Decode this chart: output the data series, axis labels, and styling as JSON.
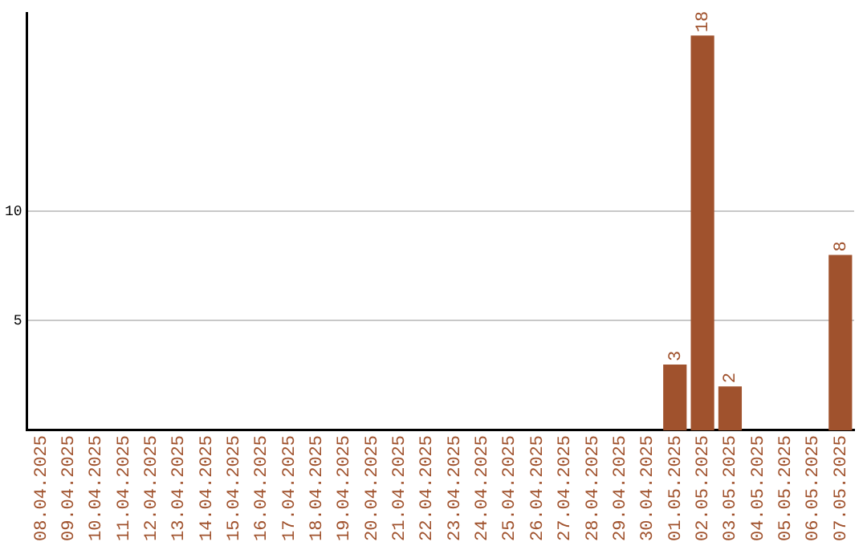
{
  "chart_data": {
    "type": "bar",
    "categories": [
      "08.04.2025",
      "09.04.2025",
      "10.04.2025",
      "11.04.2025",
      "12.04.2025",
      "13.04.2025",
      "14.04.2025",
      "15.04.2025",
      "16.04.2025",
      "17.04.2025",
      "18.04.2025",
      "19.04.2025",
      "20.04.2025",
      "21.04.2025",
      "22.04.2025",
      "23.04.2025",
      "24.04.2025",
      "25.04.2025",
      "26.04.2025",
      "27.04.2025",
      "28.04.2025",
      "29.04.2025",
      "30.04.2025",
      "01.05.2025",
      "02.05.2025",
      "03.05.2025",
      "04.05.2025",
      "05.05.2025",
      "06.05.2025",
      "07.05.2025"
    ],
    "values": [
      0,
      0,
      0,
      0,
      0,
      0,
      0,
      0,
      0,
      0,
      0,
      0,
      0,
      0,
      0,
      0,
      0,
      0,
      0,
      0,
      0,
      0,
      0,
      3,
      18,
      2,
      0,
      0,
      0,
      8
    ],
    "value_labels": [
      null,
      null,
      null,
      null,
      null,
      null,
      null,
      null,
      null,
      null,
      null,
      null,
      null,
      null,
      null,
      null,
      null,
      null,
      null,
      null,
      null,
      null,
      null,
      "3",
      "18",
      "2",
      null,
      null,
      null,
      "8"
    ],
    "color": "#a0522d",
    "ylim": [
      0,
      19
    ],
    "yticks": [
      5,
      10
    ],
    "grid": "y",
    "legend": false
  }
}
